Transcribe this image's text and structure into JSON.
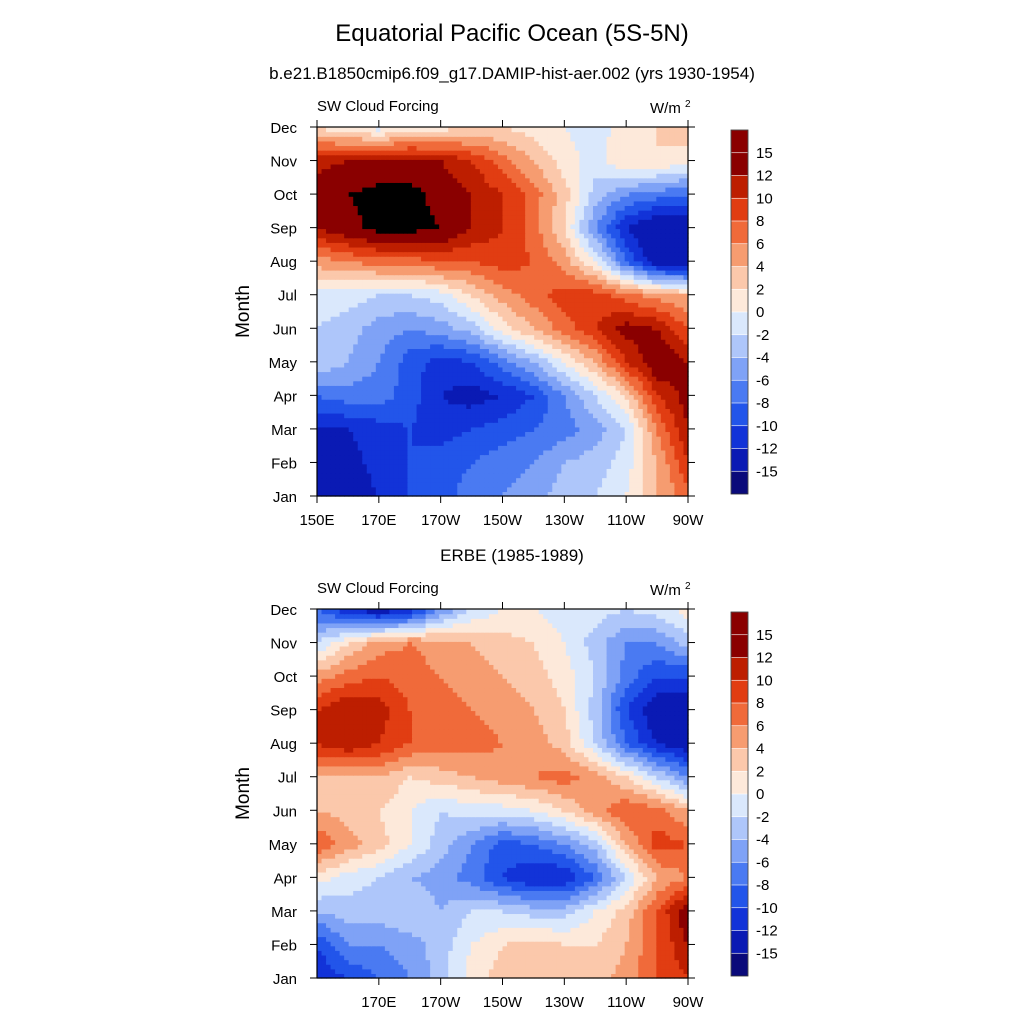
{
  "page": {
    "title": "Equatorial Pacific Ocean (5S-5N)",
    "subtitle": "b.e21.B1850cmip6.f09_g17.DAMIP-hist-aer.002 (yrs 1930-1954)",
    "panel2_title": "ERBE (1985-1989)"
  },
  "chart_data": [
    {
      "type": "heatmap",
      "variable": "SW Cloud Forcing",
      "units": "W/m",
      "units_sup": "2",
      "ylabel": "Month",
      "xlabel": "",
      "x_ticks": [
        "150E",
        "170E",
        "170W",
        "150W",
        "130W",
        "110W",
        "90W"
      ],
      "x_tick_lon": [
        150,
        170,
        190,
        210,
        230,
        250,
        270
      ],
      "xlim": [
        150,
        270
      ],
      "y_ticks": [
        "Jan",
        "Feb",
        "Mar",
        "Apr",
        "May",
        "Jun",
        "Jul",
        "Aug",
        "Sep",
        "Oct",
        "Nov",
        "Dec"
      ],
      "colorbar_labels": [
        "-15",
        "-12",
        "-10",
        "-8",
        "-6",
        "-4",
        "-2",
        "0",
        "2",
        "4",
        "6",
        "8",
        "10",
        "12",
        "15"
      ],
      "lon": [
        150,
        160,
        170,
        180,
        190,
        200,
        210,
        220,
        230,
        240,
        250,
        260,
        270
      ],
      "values": [
        [
          -14,
          -14,
          -12,
          -10,
          -9,
          -7,
          -6,
          -5,
          -3,
          -2,
          0,
          4,
          7
        ],
        [
          -13,
          -13,
          -11,
          -10,
          -9,
          -8,
          -7,
          -6,
          -4,
          -3,
          -1,
          4,
          10
        ],
        [
          -12,
          -12,
          -11,
          -10,
          -11,
          -10,
          -9,
          -8,
          -7,
          -5,
          -2,
          6,
          12
        ],
        [
          -8,
          -7,
          -7,
          -9,
          -12,
          -13,
          -12,
          -10,
          -6,
          -2,
          2,
          10,
          13
        ],
        [
          -2,
          -4,
          -6,
          -9,
          -11,
          -10,
          -7,
          -4,
          0,
          4,
          10,
          14,
          12
        ],
        [
          -2,
          -3,
          -5,
          -6,
          -5,
          -3,
          1,
          4,
          7,
          10,
          13,
          12,
          8
        ],
        [
          -1,
          -1,
          -2,
          -2,
          -1,
          2,
          5,
          7,
          9,
          9,
          7,
          5,
          4
        ],
        [
          5,
          6,
          7,
          7,
          8,
          8,
          9,
          8,
          5,
          0,
          -8,
          -14,
          -15
        ],
        [
          12,
          14,
          16,
          16,
          15,
          12,
          10,
          7,
          2,
          -6,
          -12,
          -15,
          -15
        ],
        [
          14,
          15,
          16,
          16,
          14,
          12,
          10,
          7,
          3,
          -3,
          -6,
          -7,
          -8
        ],
        [
          11,
          12,
          13,
          13,
          12,
          10,
          7,
          4,
          1,
          -1,
          2,
          2,
          1
        ],
        [
          2,
          0,
          -1,
          0,
          1,
          2,
          2,
          1,
          0,
          -1,
          1,
          2,
          3
        ]
      ]
    },
    {
      "type": "heatmap",
      "variable": "SW Cloud Forcing",
      "units": "W/m",
      "units_sup": "2",
      "ylabel": "Month",
      "xlabel": "",
      "x_ticks": [
        "170E",
        "170W",
        "150W",
        "130W",
        "110W",
        "90W"
      ],
      "x_tick_lon": [
        170,
        190,
        210,
        230,
        250,
        270
      ],
      "xlim": [
        150,
        270
      ],
      "y_ticks": [
        "Jan",
        "Feb",
        "Mar",
        "Apr",
        "May",
        "Jun",
        "Jul",
        "Aug",
        "Sep",
        "Oct",
        "Nov",
        "Dec"
      ],
      "colorbar_labels": [
        "-15",
        "-12",
        "-10",
        "-8",
        "-6",
        "-4",
        "-2",
        "0",
        "2",
        "4",
        "6",
        "8",
        "10",
        "12",
        "15"
      ],
      "lon": [
        150,
        160,
        170,
        180,
        190,
        200,
        210,
        220,
        230,
        240,
        250,
        260,
        270
      ],
      "values": [
        [
          -12,
          -10,
          -8,
          -6,
          -3,
          1,
          3,
          3,
          3,
          3,
          5,
          8,
          10
        ],
        [
          -10,
          -6,
          -6,
          -5,
          -3,
          0,
          2,
          3,
          2,
          2,
          4,
          8,
          12
        ],
        [
          -4,
          -3,
          -3,
          -2,
          -4,
          -2,
          -2,
          -3,
          -3,
          0,
          3,
          8,
          14
        ],
        [
          1,
          -1,
          -2,
          -4,
          -5,
          -7,
          -10,
          -12,
          -12,
          -8,
          -2,
          4,
          6
        ],
        [
          8,
          5,
          3,
          0,
          -3,
          -6,
          -9,
          -8,
          -6,
          -3,
          4,
          9,
          8
        ],
        [
          4,
          3,
          2,
          0,
          -2,
          -1,
          -1,
          0,
          2,
          5,
          8,
          7,
          4
        ],
        [
          4,
          3,
          4,
          2,
          3,
          4,
          5,
          6,
          7,
          5,
          2,
          -2,
          -6
        ],
        [
          10,
          12,
          10,
          8,
          7,
          7,
          6,
          5,
          3,
          -2,
          -8,
          -12,
          -14
        ],
        [
          10,
          12,
          11,
          8,
          7,
          6,
          5,
          4,
          2,
          -3,
          -10,
          -14,
          -14
        ],
        [
          5,
          7,
          8,
          7,
          6,
          5,
          4,
          3,
          1,
          -2,
          -7,
          -10,
          -10
        ],
        [
          -2,
          2,
          5,
          6,
          5,
          4,
          3,
          2,
          0,
          -3,
          -6,
          -6,
          -3
        ],
        [
          -8,
          -12,
          -14,
          -12,
          -6,
          -2,
          0,
          0,
          -1,
          -1,
          -2,
          -1,
          1
        ]
      ]
    }
  ]
}
